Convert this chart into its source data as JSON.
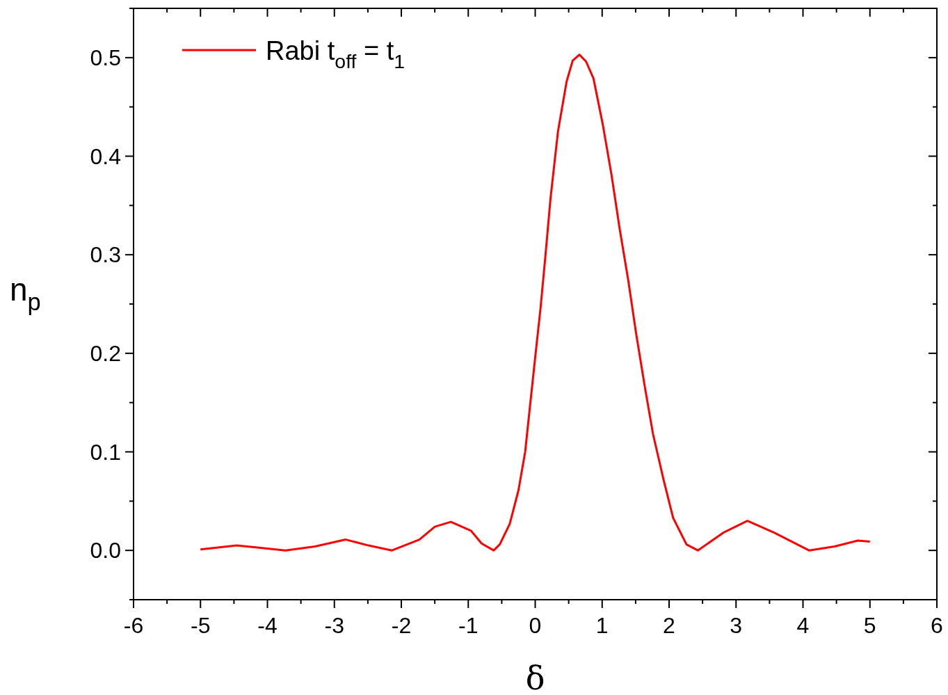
{
  "chart_data": {
    "type": "line",
    "xlabel": "δ",
    "ylabel": "n$_{p}$",
    "xlim": [
      -6,
      6
    ],
    "ylim": [
      -0.05,
      0.55
    ],
    "xticks": [
      -6,
      {
        "value": -5.5,
        "label": null
      },
      -5,
      {
        "value": -4.5,
        "label": null
      },
      -4,
      {
        "value": -3.5,
        "label": null
      },
      -3,
      {
        "value": -2.5,
        "label": null
      },
      -2,
      {
        "value": -1.5,
        "label": null
      },
      -1,
      {
        "value": -0.5,
        "label": null
      },
      0,
      {
        "value": 0.5,
        "label": null
      },
      1,
      {
        "value": 1.5,
        "label": null
      },
      2,
      {
        "value": 2.5,
        "label": null
      },
      3,
      {
        "value": 3.5,
        "label": null
      },
      4,
      {
        "value": 4.5,
        "label": null
      },
      5,
      {
        "value": 5.5,
        "label": null
      },
      6
    ],
    "yticks": [
      {
        "value": -0.05,
        "label": null
      },
      {
        "value": 0,
        "label": "0.0"
      },
      {
        "value": 0.05,
        "label": null
      },
      0.1,
      {
        "value": 0.15,
        "label": null
      },
      0.2,
      {
        "value": 0.25,
        "label": null
      },
      0.3,
      {
        "value": 0.35,
        "label": null
      },
      0.4,
      {
        "value": 0.45,
        "label": null
      },
      0.5,
      {
        "value": 0.55,
        "label": null
      }
    ],
    "legend": "top left",
    "line_style": "solid",
    "marker": "none",
    "series": [
      {
        "name": "Rabi t$_{off}$ = t$_{1}$",
        "color": "#ff0000",
        "x": [
          -5,
          -4.46,
          -4.15,
          -3.73,
          -3.29,
          -2.83,
          -2.49,
          -2.14,
          -1.73,
          -1.5,
          -1.26,
          -0.96,
          -0.8,
          -0.62,
          -0.53,
          -0.38,
          -0.25,
          -0.15,
          -0.08,
          0,
          0.08,
          0.15,
          0.23,
          0.34,
          0.47,
          0.56,
          0.66,
          0.76,
          0.87,
          1.01,
          1.14,
          1.26,
          1.39,
          1.51,
          1.64,
          1.76,
          1.92,
          2.06,
          2.26,
          2.43,
          2.81,
          3.17,
          3.57,
          4.09,
          4.47,
          4.82,
          5
        ],
        "values": [
          0.001,
          0.005,
          0.003,
          0,
          0.004,
          0.011,
          0.005,
          0,
          0.011,
          0.024,
          0.029,
          0.02,
          0.007,
          0,
          0.006,
          0.027,
          0.061,
          0.1,
          0.145,
          0.196,
          0.246,
          0.297,
          0.358,
          0.425,
          0.476,
          0.497,
          0.503,
          0.496,
          0.479,
          0.432,
          0.381,
          0.327,
          0.274,
          0.219,
          0.165,
          0.118,
          0.071,
          0.033,
          0.006,
          0,
          0.018,
          0.03,
          0.018,
          0,
          0.004,
          0.01,
          0.009
        ]
      }
    ]
  }
}
